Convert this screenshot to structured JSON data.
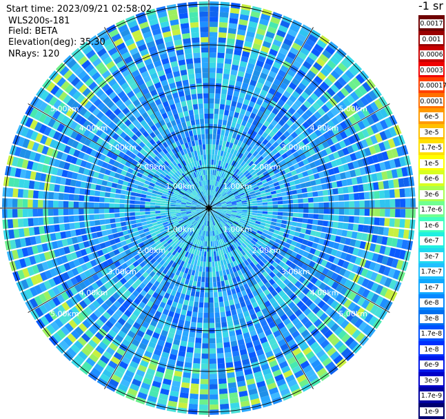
{
  "header": {
    "start_time": "Start time: 2023/09/21 02:58:02",
    "instrument": "WLS200s-181",
    "field": "Field: BETA",
    "elevation": "Elevation(deg): 35.30",
    "nrays": "NRays: 120"
  },
  "colorbar": {
    "unit": "-1 sr",
    "labels": [
      "0.0017",
      "0.001",
      "0.0006",
      "0.0003",
      "0.00017",
      "0.0001",
      "6e-5",
      "3e-5",
      "1.7e-5",
      "1e-5",
      "6e-6",
      "3e-6",
      "1.7e-6",
      "1e-6",
      "6e-7",
      "3e-7",
      "1.7e-7",
      "1e-7",
      "6e-8",
      "3e-8",
      "1.7e-8",
      "1e-8",
      "6e-9",
      "3e-9",
      "1.7e-9",
      "1e-9"
    ],
    "colors": [
      "#6e0000",
      "#9a0000",
      "#c80000",
      "#f00000",
      "#ff4000",
      "#ff7000",
      "#ff9a00",
      "#ffc000",
      "#ffe000",
      "#ffff00",
      "#d8ff20",
      "#a8ff50",
      "#70ff90",
      "#40ffc0",
      "#20f0e0",
      "#20d8f0",
      "#20c0ff",
      "#10a8ff",
      "#0888ff",
      "#0070f0",
      "#0050ff",
      "#0030ff",
      "#0018e8",
      "#0000c8",
      "#0000a0",
      "#000070"
    ]
  },
  "rings": {
    "upper": [
      "1.00km",
      "2.00km",
      "3.00km",
      "4.00km",
      "5.00km"
    ],
    "lower": [
      "1.00km",
      "2.00km",
      "3.00km",
      "4.00km",
      "5.00km"
    ]
  }
}
